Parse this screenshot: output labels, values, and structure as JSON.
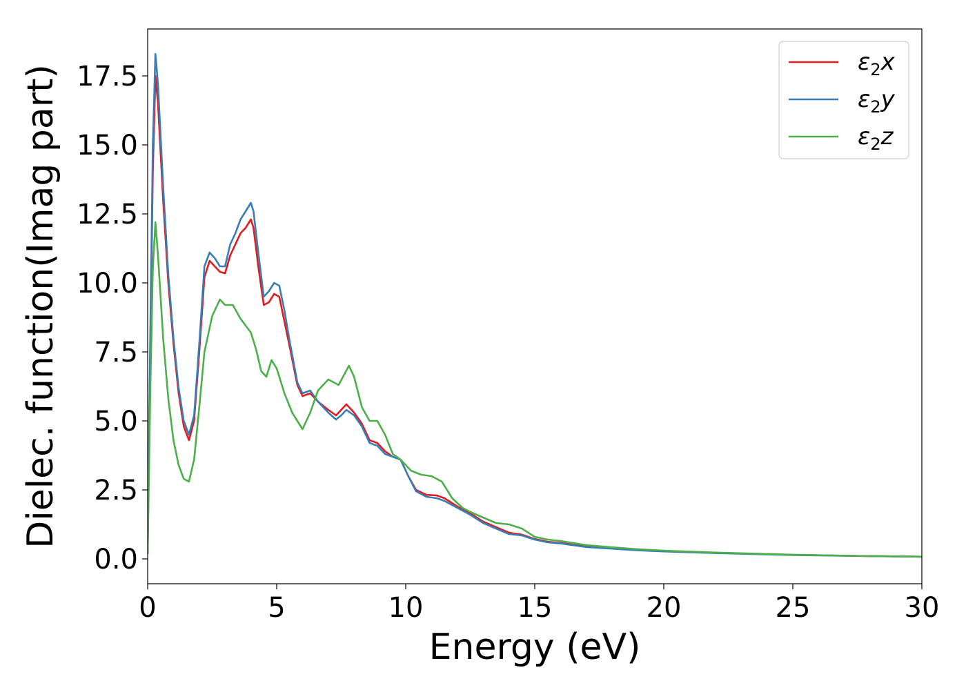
{
  "chart_data": {
    "type": "line",
    "title": "",
    "xlabel": "Energy (eV)",
    "ylabel": "Dielec. function(Imag part)",
    "xlim": [
      0,
      30
    ],
    "ylim": [
      -0.9,
      19.2
    ],
    "x_ticks": [
      "0",
      "5",
      "10",
      "15",
      "20",
      "25",
      "30"
    ],
    "y_ticks": [
      "0.0",
      "2.5",
      "5.0",
      "7.5",
      "10.0",
      "12.5",
      "15.0",
      "17.5"
    ],
    "grid": false,
    "legend_position": "top-right",
    "series": [
      {
        "name": "ε2x",
        "legend_base": "ε",
        "legend_sub": "2",
        "legend_suffix": "x",
        "color": "#e41a1c",
        "points": [
          [
            0,
            0.2
          ],
          [
            0.1,
            7.5
          ],
          [
            0.2,
            14.0
          ],
          [
            0.3,
            17.5
          ],
          [
            0.4,
            16.5
          ],
          [
            0.6,
            13.0
          ],
          [
            0.8,
            10.0
          ],
          [
            1.0,
            7.8
          ],
          [
            1.2,
            6.0
          ],
          [
            1.4,
            4.8
          ],
          [
            1.6,
            4.3
          ],
          [
            1.8,
            5.0
          ],
          [
            2.0,
            7.5
          ],
          [
            2.2,
            10.2
          ],
          [
            2.4,
            10.8
          ],
          [
            2.6,
            10.6
          ],
          [
            2.8,
            10.4
          ],
          [
            3.0,
            10.35
          ],
          [
            3.2,
            11.0
          ],
          [
            3.4,
            11.4
          ],
          [
            3.6,
            11.8
          ],
          [
            3.8,
            12.0
          ],
          [
            4.0,
            12.3
          ],
          [
            4.1,
            12.0
          ],
          [
            4.3,
            10.5
          ],
          [
            4.5,
            9.2
          ],
          [
            4.7,
            9.3
          ],
          [
            4.9,
            9.6
          ],
          [
            5.1,
            9.5
          ],
          [
            5.3,
            8.6
          ],
          [
            5.5,
            7.7
          ],
          [
            5.8,
            6.3
          ],
          [
            6.0,
            5.9
          ],
          [
            6.3,
            6.0
          ],
          [
            6.6,
            5.7
          ],
          [
            7.0,
            5.4
          ],
          [
            7.3,
            5.2
          ],
          [
            7.5,
            5.4
          ],
          [
            7.7,
            5.6
          ],
          [
            8.0,
            5.3
          ],
          [
            8.3,
            4.9
          ],
          [
            8.6,
            4.3
          ],
          [
            8.9,
            4.2
          ],
          [
            9.2,
            3.9
          ],
          [
            9.5,
            3.7
          ],
          [
            9.8,
            3.6
          ],
          [
            10.1,
            3.0
          ],
          [
            10.4,
            2.5
          ],
          [
            10.8,
            2.32
          ],
          [
            11.2,
            2.3
          ],
          [
            11.5,
            2.2
          ],
          [
            12.0,
            1.9
          ],
          [
            12.5,
            1.65
          ],
          [
            13.0,
            1.35
          ],
          [
            13.5,
            1.15
          ],
          [
            14.0,
            0.95
          ],
          [
            14.5,
            0.88
          ],
          [
            15.0,
            0.72
          ],
          [
            15.5,
            0.62
          ],
          [
            16.0,
            0.58
          ],
          [
            17.0,
            0.45
          ],
          [
            18.0,
            0.38
          ],
          [
            19.0,
            0.32
          ],
          [
            20.0,
            0.28
          ],
          [
            22.0,
            0.22
          ],
          [
            25.0,
            0.15
          ],
          [
            28.0,
            0.1
          ],
          [
            30.0,
            0.08
          ]
        ]
      },
      {
        "name": "ε2y",
        "legend_base": "ε",
        "legend_sub": "2",
        "legend_suffix": "y",
        "color": "#377eb8",
        "points": [
          [
            0,
            0.2
          ],
          [
            0.1,
            8.0
          ],
          [
            0.2,
            15.0
          ],
          [
            0.3,
            18.3
          ],
          [
            0.4,
            17.2
          ],
          [
            0.6,
            13.5
          ],
          [
            0.8,
            10.3
          ],
          [
            1.0,
            8.0
          ],
          [
            1.2,
            6.2
          ],
          [
            1.4,
            5.0
          ],
          [
            1.6,
            4.5
          ],
          [
            1.8,
            5.2
          ],
          [
            2.0,
            7.8
          ],
          [
            2.2,
            10.6
          ],
          [
            2.4,
            11.1
          ],
          [
            2.6,
            10.9
          ],
          [
            2.8,
            10.6
          ],
          [
            3.0,
            10.6
          ],
          [
            3.2,
            11.4
          ],
          [
            3.4,
            11.8
          ],
          [
            3.6,
            12.3
          ],
          [
            3.8,
            12.6
          ],
          [
            4.0,
            12.9
          ],
          [
            4.1,
            12.6
          ],
          [
            4.3,
            11.0
          ],
          [
            4.5,
            9.5
          ],
          [
            4.7,
            9.7
          ],
          [
            4.9,
            10.0
          ],
          [
            5.1,
            9.9
          ],
          [
            5.3,
            9.0
          ],
          [
            5.5,
            7.9
          ],
          [
            5.8,
            6.4
          ],
          [
            6.0,
            6.0
          ],
          [
            6.3,
            6.1
          ],
          [
            6.6,
            5.7
          ],
          [
            7.0,
            5.3
          ],
          [
            7.3,
            5.05
          ],
          [
            7.5,
            5.2
          ],
          [
            7.7,
            5.4
          ],
          [
            8.0,
            5.2
          ],
          [
            8.3,
            4.8
          ],
          [
            8.6,
            4.2
          ],
          [
            8.9,
            4.1
          ],
          [
            9.2,
            3.8
          ],
          [
            9.5,
            3.7
          ],
          [
            9.8,
            3.6
          ],
          [
            10.1,
            3.0
          ],
          [
            10.4,
            2.45
          ],
          [
            10.8,
            2.25
          ],
          [
            11.2,
            2.2
          ],
          [
            11.5,
            2.1
          ],
          [
            12.0,
            1.85
          ],
          [
            12.5,
            1.6
          ],
          [
            13.0,
            1.3
          ],
          [
            13.5,
            1.1
          ],
          [
            14.0,
            0.9
          ],
          [
            14.5,
            0.85
          ],
          [
            15.0,
            0.7
          ],
          [
            15.5,
            0.6
          ],
          [
            16.0,
            0.56
          ],
          [
            17.0,
            0.43
          ],
          [
            18.0,
            0.37
          ],
          [
            19.0,
            0.31
          ],
          [
            20.0,
            0.27
          ],
          [
            22.0,
            0.21
          ],
          [
            25.0,
            0.14
          ],
          [
            28.0,
            0.1
          ],
          [
            30.0,
            0.08
          ]
        ]
      },
      {
        "name": "ε2z",
        "legend_base": "ε",
        "legend_sub": "2",
        "legend_suffix": "z",
        "color": "#4daf4a",
        "points": [
          [
            0,
            0.2
          ],
          [
            0.1,
            6.0
          ],
          [
            0.2,
            10.5
          ],
          [
            0.3,
            12.2
          ],
          [
            0.4,
            11.0
          ],
          [
            0.6,
            8.0
          ],
          [
            0.8,
            5.8
          ],
          [
            1.0,
            4.3
          ],
          [
            1.2,
            3.4
          ],
          [
            1.4,
            2.9
          ],
          [
            1.6,
            2.8
          ],
          [
            1.8,
            3.6
          ],
          [
            2.0,
            5.5
          ],
          [
            2.2,
            7.5
          ],
          [
            2.5,
            8.8
          ],
          [
            2.8,
            9.4
          ],
          [
            3.0,
            9.2
          ],
          [
            3.3,
            9.2
          ],
          [
            3.6,
            8.7
          ],
          [
            4.0,
            8.2
          ],
          [
            4.2,
            7.6
          ],
          [
            4.4,
            6.8
          ],
          [
            4.6,
            6.6
          ],
          [
            4.8,
            7.2
          ],
          [
            5.0,
            6.9
          ],
          [
            5.3,
            6.0
          ],
          [
            5.6,
            5.3
          ],
          [
            6.0,
            4.7
          ],
          [
            6.3,
            5.3
          ],
          [
            6.6,
            6.1
          ],
          [
            7.0,
            6.5
          ],
          [
            7.4,
            6.3
          ],
          [
            7.8,
            7.0
          ],
          [
            8.0,
            6.6
          ],
          [
            8.3,
            5.5
          ],
          [
            8.6,
            5.0
          ],
          [
            8.9,
            5.0
          ],
          [
            9.2,
            4.5
          ],
          [
            9.5,
            3.8
          ],
          [
            9.8,
            3.6
          ],
          [
            10.2,
            3.2
          ],
          [
            10.6,
            3.05
          ],
          [
            11.0,
            3.0
          ],
          [
            11.4,
            2.8
          ],
          [
            11.8,
            2.2
          ],
          [
            12.2,
            1.85
          ],
          [
            12.5,
            1.7
          ],
          [
            13.0,
            1.5
          ],
          [
            13.5,
            1.3
          ],
          [
            14.0,
            1.25
          ],
          [
            14.5,
            1.1
          ],
          [
            15.0,
            0.8
          ],
          [
            15.5,
            0.7
          ],
          [
            16.0,
            0.65
          ],
          [
            17.0,
            0.5
          ],
          [
            18.0,
            0.42
          ],
          [
            19.0,
            0.35
          ],
          [
            20.0,
            0.3
          ],
          [
            22.0,
            0.23
          ],
          [
            25.0,
            0.15
          ],
          [
            28.0,
            0.1
          ],
          [
            30.0,
            0.08
          ]
        ]
      }
    ]
  }
}
